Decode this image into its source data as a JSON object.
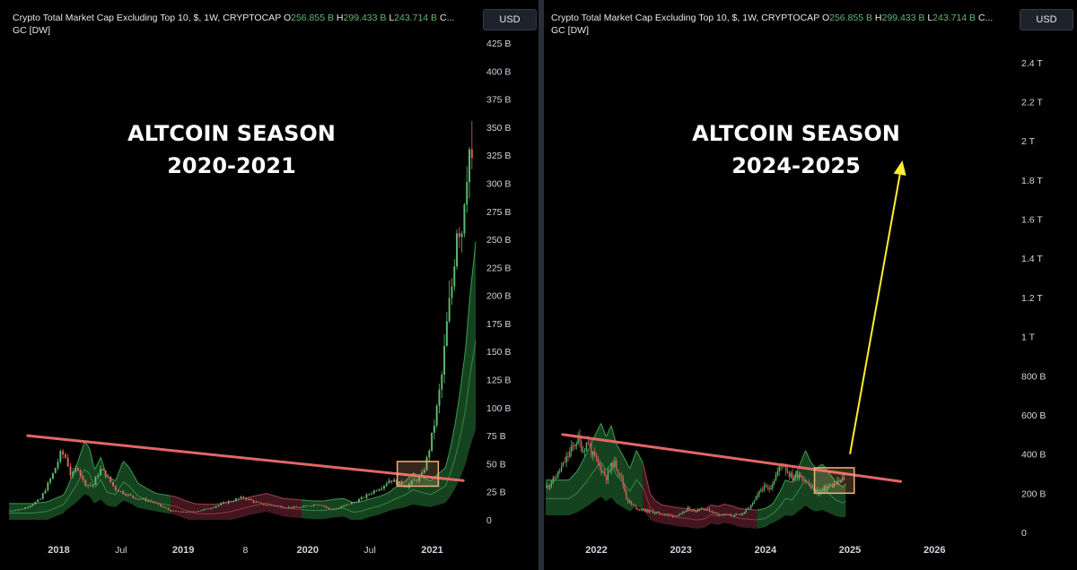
{
  "colors": {
    "background": "#000000",
    "up_candle": "#5dba6d",
    "down_candle": "#e06060",
    "trendline": "#e36666",
    "breakout_box": "#f0b27a",
    "arrow": "#ffee33",
    "band_green": "#1e5a2a",
    "band_red": "#5a1e2a"
  },
  "left_panel": {
    "legend": {
      "title": "Crypto Total Market Cap Excluding Top 10, $, 1W, CRYPTOCAP",
      "open_label": "O",
      "open_value": "256.855 B",
      "high_label": "H",
      "high_value": "299.433 B",
      "low_label": "L",
      "low_value": "243.714 B",
      "more": "C...",
      "indicator": "GC [DW]"
    },
    "currency_button": "USD",
    "annotation_line1": "ALTCOIN SEASON",
    "annotation_line2": "2020-2021"
  },
  "right_panel": {
    "legend": {
      "title": "Crypto Total Market Cap Excluding Top 10, $, 1W, CRYPTOCAP",
      "open_label": "O",
      "open_value": "256.855 B",
      "high_label": "H",
      "high_value": "299.433 B",
      "low_label": "L",
      "low_value": "243.714 B",
      "more": "C...",
      "indicator": "GC [DW]"
    },
    "currency_button": "USD",
    "annotation_line1": "ALTCOIN SEASON",
    "annotation_line2": "2024-2025"
  },
  "chart_data": [
    {
      "type": "line",
      "chart_style": "candlestick",
      "title": "Crypto Total Market Cap Excluding Top 10, $, 1W, CRYPTOCAP",
      "y_unit": "B",
      "ylim": [
        0,
        425
      ],
      "y_ticks": [
        "425 B",
        "400 B",
        "375 B",
        "350 B",
        "325 B",
        "300 B",
        "275 B",
        "250 B",
        "225 B",
        "200 B",
        "175 B",
        "150 B",
        "125 B",
        "100 B",
        "75 B",
        "50 B",
        "25 B",
        "0"
      ],
      "y_tick_values": [
        425,
        400,
        375,
        350,
        325,
        300,
        275,
        250,
        225,
        200,
        175,
        150,
        125,
        100,
        75,
        50,
        25,
        0
      ],
      "x_ticks": [
        {
          "label": "2018",
          "t": 2018.0,
          "bold": true
        },
        {
          "label": "Jul",
          "t": 2018.5,
          "bold": false
        },
        {
          "label": "2019",
          "t": 2019.0,
          "bold": true
        },
        {
          "label": "8",
          "t": 2019.5,
          "bold": false
        },
        {
          "label": "2020",
          "t": 2020.0,
          "bold": true
        },
        {
          "label": "Jul",
          "t": 2020.5,
          "bold": false
        },
        {
          "label": "2021",
          "t": 2021.0,
          "bold": true
        }
      ],
      "xlim": [
        2017.6,
        2021.35
      ],
      "price_points": [
        [
          2017.6,
          8
        ],
        [
          2017.72,
          10
        ],
        [
          2017.85,
          18
        ],
        [
          2017.95,
          40
        ],
        [
          2018.02,
          60
        ],
        [
          2018.06,
          55
        ],
        [
          2018.1,
          38
        ],
        [
          2018.15,
          48
        ],
        [
          2018.2,
          33
        ],
        [
          2018.27,
          30
        ],
        [
          2018.33,
          45
        ],
        [
          2018.38,
          40
        ],
        [
          2018.45,
          28
        ],
        [
          2018.52,
          24
        ],
        [
          2018.6,
          20
        ],
        [
          2018.68,
          18
        ],
        [
          2018.75,
          16
        ],
        [
          2018.82,
          12
        ],
        [
          2018.9,
          8
        ],
        [
          2018.98,
          7
        ],
        [
          2019.05,
          7
        ],
        [
          2019.12,
          8
        ],
        [
          2019.2,
          10
        ],
        [
          2019.28,
          13
        ],
        [
          2019.35,
          16
        ],
        [
          2019.42,
          18
        ],
        [
          2019.48,
          20
        ],
        [
          2019.55,
          17
        ],
        [
          2019.62,
          14
        ],
        [
          2019.7,
          13
        ],
        [
          2019.78,
          12
        ],
        [
          2019.86,
          11
        ],
        [
          2019.94,
          11
        ],
        [
          2020.02,
          13
        ],
        [
          2020.1,
          14
        ],
        [
          2020.18,
          9
        ],
        [
          2020.24,
          10
        ],
        [
          2020.3,
          13
        ],
        [
          2020.38,
          16
        ],
        [
          2020.45,
          20
        ],
        [
          2020.52,
          25
        ],
        [
          2020.6,
          30
        ],
        [
          2020.66,
          36
        ],
        [
          2020.72,
          33
        ],
        [
          2020.8,
          30
        ],
        [
          2020.86,
          35
        ],
        [
          2020.92,
          40
        ],
        [
          2020.96,
          55
        ],
        [
          2021.0,
          75
        ],
        [
          2021.04,
          100
        ],
        [
          2021.08,
          130
        ],
        [
          2021.12,
          175
        ],
        [
          2021.16,
          210
        ],
        [
          2021.2,
          265
        ],
        [
          2021.24,
          260
        ],
        [
          2021.27,
          310
        ],
        [
          2021.3,
          330
        ],
        [
          2021.33,
          300
        ]
      ],
      "band_segments": [
        {
          "from": 2017.6,
          "to": 2018.9,
          "phase": "green"
        },
        {
          "from": 2018.9,
          "to": 2019.95,
          "phase": "red"
        },
        {
          "from": 2019.95,
          "to": 2021.35,
          "phase": "green"
        }
      ],
      "trendline": [
        [
          2017.75,
          75
        ],
        [
          2021.25,
          35
        ]
      ],
      "breakout_box": {
        "t0": 2020.72,
        "t1": 2021.05,
        "v0": 30,
        "v1": 52
      }
    },
    {
      "type": "line",
      "chart_style": "candlestick",
      "title": "Crypto Total Market Cap Excluding Top 10, $, 1W, CRYPTOCAP",
      "y_unit": "B",
      "ylim": [
        0,
        2500
      ],
      "y_ticks": [
        "2.4 T",
        "2.2 T",
        "2 T",
        "1.8 T",
        "1.6 T",
        "1.4 T",
        "1.2 T",
        "1 T",
        "800 B",
        "600 B",
        "400 B",
        "200 B",
        "0"
      ],
      "y_tick_values": [
        2400,
        2200,
        2000,
        1800,
        1600,
        1400,
        1200,
        1000,
        800,
        600,
        400,
        200,
        0
      ],
      "x_ticks": [
        {
          "label": "2022",
          "t": 2022.0,
          "bold": true
        },
        {
          "label": "2023",
          "t": 2023.0,
          "bold": true
        },
        {
          "label": "2024",
          "t": 2024.0,
          "bold": true
        },
        {
          "label": "2025",
          "t": 2025.0,
          "bold": true
        },
        {
          "label": "2026",
          "t": 2026.0,
          "bold": true
        }
      ],
      "xlim": [
        2021.4,
        2026.9
      ],
      "price_points": [
        [
          2021.4,
          230
        ],
        [
          2021.5,
          270
        ],
        [
          2021.6,
          340
        ],
        [
          2021.7,
          420
        ],
        [
          2021.78,
          480
        ],
        [
          2021.84,
          420
        ],
        [
          2021.9,
          470
        ],
        [
          2021.96,
          390
        ],
        [
          2022.05,
          330
        ],
        [
          2022.12,
          280
        ],
        [
          2022.2,
          360
        ],
        [
          2022.28,
          300
        ],
        [
          2022.36,
          170
        ],
        [
          2022.42,
          140
        ],
        [
          2022.5,
          120
        ],
        [
          2022.6,
          110
        ],
        [
          2022.7,
          100
        ],
        [
          2022.8,
          95
        ],
        [
          2022.9,
          85
        ],
        [
          2023.0,
          90
        ],
        [
          2023.08,
          120
        ],
        [
          2023.16,
          110
        ],
        [
          2023.24,
          125
        ],
        [
          2023.32,
          115
        ],
        [
          2023.42,
          95
        ],
        [
          2023.52,
          90
        ],
        [
          2023.62,
          85
        ],
        [
          2023.72,
          95
        ],
        [
          2023.82,
          130
        ],
        [
          2023.9,
          180
        ],
        [
          2023.96,
          230
        ],
        [
          2024.04,
          220
        ],
        [
          2024.1,
          270
        ],
        [
          2024.2,
          360
        ],
        [
          2024.26,
          310
        ],
        [
          2024.32,
          280
        ],
        [
          2024.4,
          300
        ],
        [
          2024.48,
          260
        ],
        [
          2024.56,
          220
        ],
        [
          2024.64,
          200
        ],
        [
          2024.72,
          230
        ],
        [
          2024.8,
          240
        ],
        [
          2024.88,
          260
        ],
        [
          2024.94,
          280
        ]
      ],
      "band_segments": [
        {
          "from": 2021.4,
          "to": 2022.55,
          "phase": "green"
        },
        {
          "from": 2022.55,
          "to": 2023.9,
          "phase": "red"
        },
        {
          "from": 2023.9,
          "to": 2024.95,
          "phase": "green"
        }
      ],
      "trendline": [
        [
          2021.6,
          500
        ],
        [
          2025.6,
          260
        ]
      ],
      "breakout_box": {
        "t0": 2024.58,
        "t1": 2025.05,
        "v0": 200,
        "v1": 330
      },
      "arrow": {
        "from": [
          2025.0,
          400
        ],
        "to": [
          2025.62,
          1900
        ]
      }
    }
  ]
}
